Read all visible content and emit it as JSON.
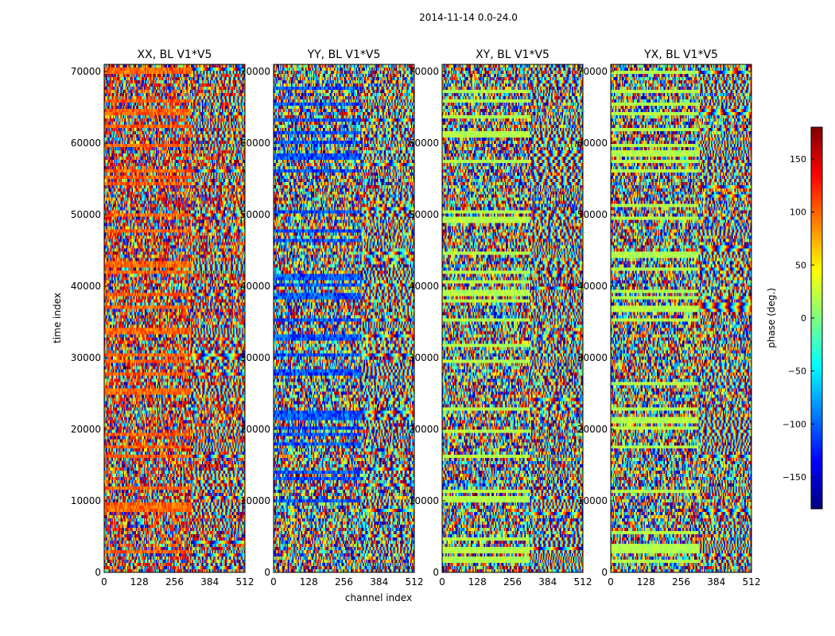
{
  "figure": {
    "suptitle": "2014-11-14 0.0-24.0",
    "xlabel": "channel index",
    "ylabel": "time index"
  },
  "colors": {
    "jet": [
      "#00007f",
      "#0000ff",
      "#007fff",
      "#00ffff",
      "#7fff7f",
      "#ffff00",
      "#ff7f00",
      "#ff0000",
      "#7f0000"
    ]
  },
  "chart_data": [
    {
      "type": "heatmap",
      "title": "XX, BL V1*V5",
      "xlim": [
        0,
        512
      ],
      "ylim": [
        0,
        71000
      ],
      "xticks": [
        0,
        128,
        256,
        384,
        512
      ],
      "yticks": [
        0,
        10000,
        20000,
        30000,
        40000,
        50000,
        60000,
        70000
      ],
      "colormap": "jet",
      "value_range": [
        -180,
        180
      ]
    },
    {
      "type": "heatmap",
      "title": "YY, BL V1*V5",
      "xlim": [
        0,
        512
      ],
      "ylim": [
        0,
        71000
      ],
      "xticks": [
        0,
        128,
        256,
        384,
        512
      ],
      "yticks": [
        0,
        10000,
        20000,
        30000,
        40000,
        50000,
        60000,
        70000
      ],
      "colormap": "jet",
      "value_range": [
        -180,
        180
      ]
    },
    {
      "type": "heatmap",
      "title": "XY, BL V1*V5",
      "xlim": [
        0,
        512
      ],
      "ylim": [
        0,
        71000
      ],
      "xticks": [
        0,
        128,
        256,
        384,
        512
      ],
      "yticks": [
        0,
        10000,
        20000,
        30000,
        40000,
        50000,
        60000,
        70000
      ],
      "colormap": "jet",
      "value_range": [
        -180,
        180
      ]
    },
    {
      "type": "heatmap",
      "title": "YX, BL V1*V5",
      "xlim": [
        0,
        512
      ],
      "ylim": [
        0,
        71000
      ],
      "xticks": [
        0,
        128,
        256,
        384,
        512
      ],
      "yticks": [
        0,
        10000,
        20000,
        30000,
        40000,
        50000,
        60000,
        70000
      ],
      "colormap": "jet",
      "value_range": [
        -180,
        180
      ]
    }
  ],
  "colorbar": {
    "label": "phase (deg.)",
    "range": [
      -180,
      180
    ],
    "ticks": [
      -150,
      -100,
      -50,
      0,
      50,
      100,
      150
    ],
    "tick_labels": [
      "−150",
      "−100",
      "−50",
      "0",
      "50",
      "100",
      "150"
    ]
  }
}
